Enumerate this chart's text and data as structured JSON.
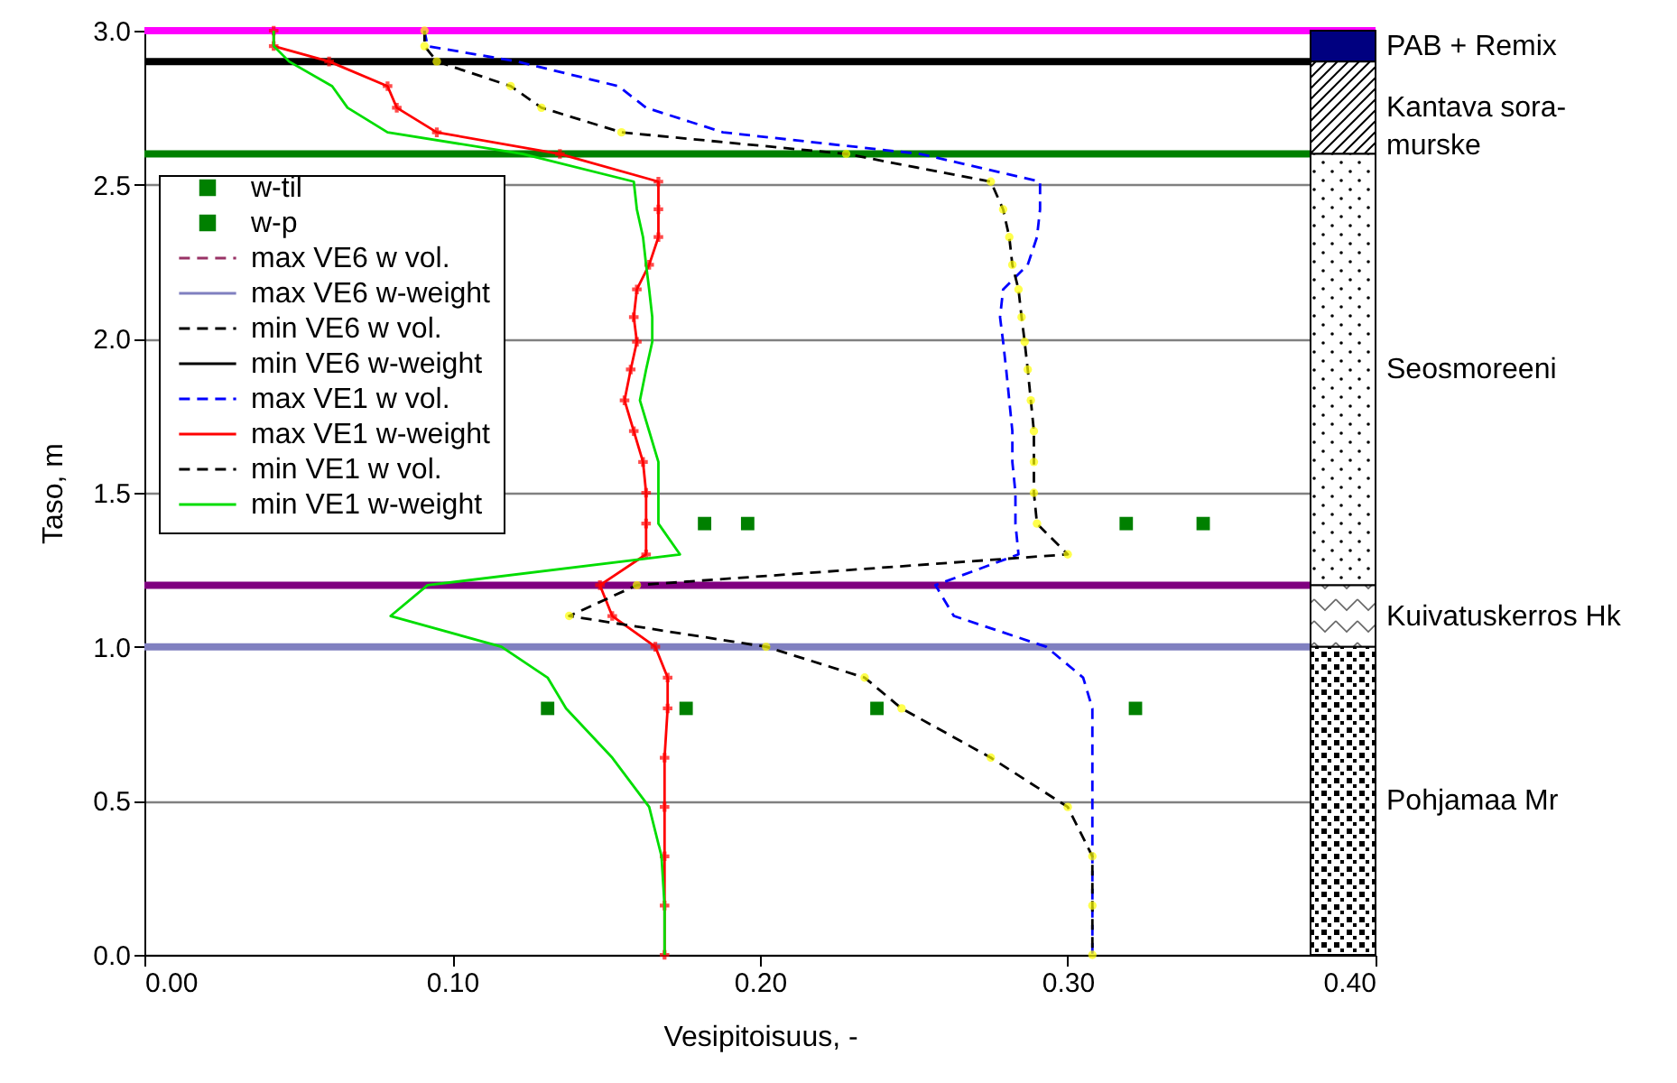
{
  "chart_data": {
    "type": "line",
    "xlabel": "Vesipitoisuus, -",
    "ylabel": "Taso, m",
    "xlim": [
      0,
      0.4
    ],
    "xticks": [
      {
        "value": 0,
        "label": "0.00"
      },
      {
        "value": 0.1,
        "label": "0.10"
      },
      {
        "value": 0.2,
        "label": "0.20"
      },
      {
        "value": 0.3,
        "label": "0.30"
      },
      {
        "value": 0.4,
        "label": "0.40"
      }
    ],
    "ylim": [
      0,
      3
    ],
    "yticks": [
      {
        "value": 0,
        "label": "0.0"
      },
      {
        "value": 0.5,
        "label": "0.5"
      },
      {
        "value": 1,
        "label": "1.0"
      },
      {
        "value": 1.5,
        "label": "1.5"
      },
      {
        "value": 2,
        "label": "2.0"
      },
      {
        "value": 2.5,
        "label": "2.5"
      },
      {
        "value": 3,
        "label": "3.0"
      }
    ],
    "grid": "y",
    "legend": "top left",
    "series": [
      {
        "name": "w-til",
        "type": "scatter",
        "marker": "square",
        "color": "#008000",
        "x": [
          0.319,
          0.344,
          0.238,
          0.322
        ],
        "values": [
          1.4,
          1.4,
          0.8,
          0.8
        ]
      },
      {
        "name": "w-p",
        "type": "scatter",
        "marker": "square",
        "color": "#008000",
        "x": [
          0.182,
          0.196,
          0.131,
          0.176
        ],
        "values": [
          1.4,
          1.4,
          0.8,
          0.8
        ]
      },
      {
        "name": "max VE6 w vol.",
        "line_style": "dashed",
        "color": "#993366"
      },
      {
        "name": "max VE6 w-weight",
        "line_style": "solid",
        "color": "#8080c0"
      },
      {
        "name": "min VE6 w vol.",
        "line_style": "dashed",
        "color": "#000000"
      },
      {
        "name": "min VE6 w-weight",
        "line_style": "solid",
        "color": "#000000"
      },
      {
        "name": "max VE1 w vol.",
        "line_style": "dashed",
        "color": "#0000ff",
        "x": [
          0.091,
          0.092,
          0.121,
          0.154,
          0.163,
          0.188,
          0.252,
          0.291,
          0.291,
          0.29,
          0.287,
          0.279,
          0.278,
          0.279,
          0.28,
          0.281,
          0.282,
          0.282,
          0.283,
          0.283,
          0.284,
          0.257,
          0.263,
          0.293,
          0.305,
          0.308,
          0.308,
          0.308,
          0.308,
          0.308,
          0.308
        ],
        "values": [
          3.0,
          2.95,
          2.9,
          2.82,
          2.75,
          2.67,
          2.6,
          2.51,
          2.42,
          2.33,
          2.24,
          2.16,
          2.07,
          1.99,
          1.9,
          1.8,
          1.7,
          1.6,
          1.5,
          1.4,
          1.3,
          1.2,
          1.1,
          1.0,
          0.9,
          0.8,
          0.64,
          0.48,
          0.32,
          0.16,
          0
        ]
      },
      {
        "name": "max VE1 w-weight",
        "line_style": "solid",
        "marker": "cross",
        "color": "#ff0000",
        "x": [
          0.042,
          0.042,
          0.06,
          0.079,
          0.082,
          0.095,
          0.135,
          0.167,
          0.167,
          0.167,
          0.164,
          0.16,
          0.159,
          0.16,
          0.158,
          0.156,
          0.159,
          0.162,
          0.163,
          0.163,
          0.163,
          0.148,
          0.152,
          0.166,
          0.17,
          0.17,
          0.169,
          0.169,
          0.169,
          0.169,
          0.169
        ],
        "values": [
          3.0,
          2.95,
          2.9,
          2.82,
          2.75,
          2.67,
          2.6,
          2.51,
          2.42,
          2.33,
          2.24,
          2.16,
          2.07,
          1.99,
          1.9,
          1.8,
          1.7,
          1.6,
          1.5,
          1.4,
          1.3,
          1.2,
          1.1,
          1.0,
          0.9,
          0.8,
          0.64,
          0.48,
          0.32,
          0.16,
          0
        ]
      },
      {
        "name": "min VE1 w vol.",
        "line_style": "dashed",
        "marker": "circle",
        "color": "#000000",
        "colors": [
          "#ffff00",
          "#ffff00",
          "#ffff00",
          "#ffff00",
          "#ffff00",
          "#ffff00",
          "#ffff00",
          "#ffff00",
          "#ffff00",
          "#ffff00",
          "#ffff00",
          "#ffff00",
          "#ffff00",
          "#ffff00",
          "#ffff00",
          "#ffff00",
          "#ffff00",
          "#ffff00",
          "#ffff00",
          "#ffff00",
          "#ffff00",
          "#ffff00",
          "#ffff00",
          "#ffff00",
          "#ffff00",
          "#ffff00",
          "#ffff00",
          "#ffff00",
          "#ffff00",
          "#ffff00",
          "#ffff00"
        ],
        "x": [
          0.091,
          0.091,
          0.095,
          0.119,
          0.129,
          0.155,
          0.228,
          0.275,
          0.279,
          0.281,
          0.282,
          0.284,
          0.285,
          0.286,
          0.287,
          0.288,
          0.289,
          0.289,
          0.289,
          0.29,
          0.3,
          0.16,
          0.138,
          0.202,
          0.234,
          0.246,
          0.275,
          0.3,
          0.308,
          0.308,
          0.308
        ],
        "values": [
          3.0,
          2.95,
          2.9,
          2.82,
          2.75,
          2.67,
          2.6,
          2.51,
          2.42,
          2.33,
          2.24,
          2.16,
          2.07,
          1.99,
          1.9,
          1.8,
          1.7,
          1.6,
          1.5,
          1.4,
          1.3,
          1.2,
          1.1,
          1.0,
          0.9,
          0.8,
          0.64,
          0.48,
          0.32,
          0.16,
          0
        ]
      },
      {
        "name": "min VE1 w-weight",
        "line_style": "solid",
        "color": "#00dd00",
        "x": [
          0.042,
          0.042,
          0.047,
          0.061,
          0.066,
          0.079,
          0.123,
          0.159,
          0.16,
          0.162,
          0.163,
          0.164,
          0.165,
          0.165,
          0.163,
          0.161,
          0.164,
          0.167,
          0.167,
          0.167,
          0.174,
          0.092,
          0.08,
          0.116,
          0.131,
          0.137,
          0.152,
          0.164,
          0.168,
          0.169,
          0.169
        ],
        "values": [
          3.0,
          2.95,
          2.9,
          2.82,
          2.75,
          2.67,
          2.6,
          2.51,
          2.42,
          2.33,
          2.24,
          2.16,
          2.07,
          1.99,
          1.9,
          1.8,
          1.7,
          1.6,
          1.5,
          1.4,
          1.3,
          1.2,
          1.1,
          1.0,
          0.9,
          0.8,
          0.64,
          0.48,
          0.32,
          0.16,
          0
        ]
      }
    ],
    "ref_lines": [
      {
        "axis": "y",
        "value": 3.0,
        "color": "#ff00ff"
      },
      {
        "axis": "y",
        "value": 2.9,
        "color": "#000000"
      },
      {
        "axis": "y",
        "value": 2.6,
        "color": "#008000"
      },
      {
        "axis": "y",
        "value": 1.2,
        "color": "#800080"
      },
      {
        "axis": "y",
        "value": 1.0,
        "color": "#8080c0"
      }
    ],
    "bands": [
      {
        "axis": "y",
        "from": 2.9,
        "to": 3.0,
        "label": "PAB + Remix",
        "color": "#000080"
      },
      {
        "axis": "y",
        "from": 2.6,
        "to": 2.9,
        "label": "Kantava sora-\nmurske"
      },
      {
        "axis": "y",
        "from": 1.2,
        "to": 2.6,
        "label": "Seosmoreeni"
      },
      {
        "axis": "y",
        "from": 1.0,
        "to": 1.2,
        "label": "Kuivatuskerros Hk"
      },
      {
        "axis": "y",
        "from": 0,
        "to": 1.0,
        "label": "Pohjamaa Mr"
      }
    ]
  }
}
